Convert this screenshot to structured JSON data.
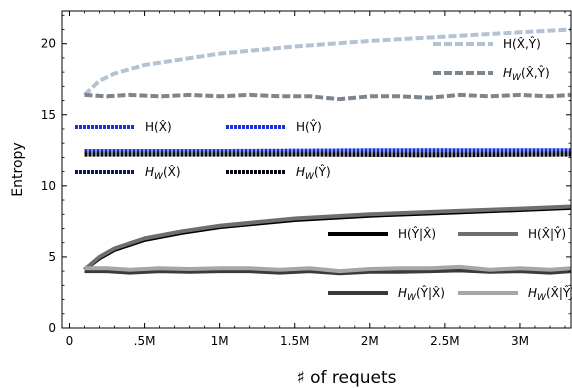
{
  "chart_data": {
    "type": "line",
    "xlabel": "♯ of requets",
    "ylabel": "Entropy",
    "xlim": [
      -50000,
      3340000
    ],
    "ylim": [
      0,
      22.3
    ],
    "x_ticks": [
      {
        "value": 0,
        "label": "0"
      },
      {
        "value": 500000,
        "label": ".5M"
      },
      {
        "value": 1000000,
        "label": "1M"
      },
      {
        "value": 1500000,
        "label": "1.5M"
      },
      {
        "value": 2000000,
        "label": "2M"
      },
      {
        "value": 2500000,
        "label": "2.5M"
      },
      {
        "value": 3000000,
        "label": "3M"
      }
    ],
    "y_ticks": [
      {
        "value": 0,
        "label": "0"
      },
      {
        "value": 5,
        "label": "5"
      },
      {
        "value": 10,
        "label": "10"
      },
      {
        "value": 15,
        "label": "15"
      },
      {
        "value": 20,
        "label": "20"
      }
    ],
    "grid": false,
    "legend_placement": "inside, right side",
    "series": [
      {
        "name": "H(X̂,Ŷ)",
        "color": "#b4c2d2",
        "dash": "dashed",
        "x": [
          100000,
          200000,
          300000,
          500000,
          750000,
          1000000,
          1500000,
          2000000,
          2500000,
          3000000,
          3340000
        ],
        "y": [
          16.4,
          17.4,
          17.9,
          18.5,
          18.9,
          19.3,
          19.8,
          20.2,
          20.5,
          20.8,
          21.0
        ]
      },
      {
        "name": "H_W(X̂,Ŷ)",
        "color": "#7d858d",
        "dash": "dashed",
        "x": [
          100000,
          250000,
          400000,
          600000,
          800000,
          1000000,
          1200000,
          1400000,
          1600000,
          1800000,
          2000000,
          2200000,
          2400000,
          2600000,
          2800000,
          3000000,
          3200000,
          3340000
        ],
        "y": [
          16.4,
          16.3,
          16.4,
          16.3,
          16.4,
          16.3,
          16.4,
          16.3,
          16.3,
          16.1,
          16.3,
          16.3,
          16.2,
          16.4,
          16.3,
          16.4,
          16.3,
          16.4
        ]
      },
      {
        "name": "H(X̂)",
        "color": "#1a2fd6",
        "dash": "dotted",
        "x": [
          100000,
          1000000,
          2000000,
          3340000
        ],
        "y": [
          12.45,
          12.45,
          12.5,
          12.5
        ]
      },
      {
        "name": "H(Ŷ)",
        "color": "#1a2fd6",
        "dash": "dotted",
        "x": [
          100000,
          1000000,
          2000000,
          3340000
        ],
        "y": [
          12.4,
          12.4,
          12.45,
          12.45
        ]
      },
      {
        "name": "H_W(X̂)",
        "color": "#0c1a5a",
        "dash": "dotted",
        "x": [
          100000,
          800000,
          1600000,
          2400000,
          3340000
        ],
        "y": [
          12.3,
          12.3,
          12.3,
          12.25,
          12.3
        ]
      },
      {
        "name": "H_W(Ŷ)",
        "color": "#0a0a14",
        "dash": "dotted",
        "x": [
          100000,
          800000,
          1600000,
          2400000,
          3340000
        ],
        "y": [
          12.2,
          12.2,
          12.2,
          12.15,
          12.2
        ]
      },
      {
        "name": "H(Ŷ|X̂)",
        "color": "#000000",
        "dash": "solid",
        "x": [
          100000,
          200000,
          300000,
          500000,
          750000,
          1000000,
          1500000,
          2000000,
          2500000,
          3000000,
          3340000
        ],
        "y": [
          4.1,
          4.9,
          5.5,
          6.2,
          6.7,
          7.1,
          7.6,
          7.9,
          8.1,
          8.3,
          8.45
        ]
      },
      {
        "name": "H(X̂|Ŷ)",
        "color": "#6e6e6e",
        "dash": "solid",
        "x": [
          100000,
          200000,
          300000,
          500000,
          750000,
          1000000,
          1500000,
          2000000,
          2500000,
          3000000,
          3340000
        ],
        "y": [
          4.1,
          5.0,
          5.6,
          6.3,
          6.8,
          7.2,
          7.7,
          8.0,
          8.2,
          8.4,
          8.55
        ]
      },
      {
        "name": "H_W(Ŷ|X̂)",
        "color": "#3a3a3a",
        "dash": "solid",
        "x": [
          100000,
          250000,
          400000,
          600000,
          800000,
          1000000,
          1200000,
          1400000,
          1600000,
          1800000,
          2000000,
          2200000,
          2400000,
          2600000,
          2800000,
          3000000,
          3200000,
          3340000
        ],
        "y": [
          4.0,
          4.0,
          3.9,
          4.0,
          3.95,
          4.0,
          4.0,
          3.9,
          4.0,
          3.85,
          3.95,
          3.95,
          4.0,
          4.05,
          3.95,
          4.0,
          3.9,
          4.0
        ]
      },
      {
        "name": "H_W(X̂|Ŷ)",
        "color": "#a6a6a6",
        "dash": "solid",
        "x": [
          100000,
          250000,
          400000,
          600000,
          800000,
          1000000,
          1200000,
          1400000,
          1600000,
          1800000,
          2000000,
          2200000,
          2400000,
          2600000,
          2800000,
          3000000,
          3200000,
          3340000
        ],
        "y": [
          4.2,
          4.2,
          4.1,
          4.2,
          4.15,
          4.2,
          4.2,
          4.1,
          4.2,
          4.0,
          4.15,
          4.2,
          4.2,
          4.3,
          4.1,
          4.2,
          4.1,
          4.2
        ]
      }
    ],
    "legend": [
      {
        "series": 0,
        "main": "H(",
        "sub": "",
        "args": "X̂,Ŷ",
        "tail": ")"
      },
      {
        "series": 1,
        "main": "H",
        "sub": "W",
        "args": "X̂,Ŷ",
        "tail": ")"
      },
      {
        "series": 2,
        "main": "H(",
        "sub": "",
        "args": "X̂",
        "tail": ")"
      },
      {
        "series": 3,
        "main": "H(",
        "sub": "",
        "args": "Ŷ",
        "tail": ")"
      },
      {
        "series": 4,
        "main": "H",
        "sub": "W",
        "args": "X̂",
        "tail": ")"
      },
      {
        "series": 5,
        "main": "H",
        "sub": "W",
        "args": "Ŷ",
        "tail": ")"
      },
      {
        "series": 6,
        "main": "H(",
        "sub": "",
        "args": "Ŷ|X̂",
        "tail": ")"
      },
      {
        "series": 7,
        "main": "H(",
        "sub": "",
        "args": "X̂|Ŷ",
        "tail": ")"
      },
      {
        "series": 8,
        "main": "H",
        "sub": "W",
        "args": "Ŷ|X̂",
        "tail": ")"
      },
      {
        "series": 9,
        "main": "H",
        "sub": "W",
        "args": "X̂|Ŷ",
        "tail": ")"
      }
    ]
  }
}
